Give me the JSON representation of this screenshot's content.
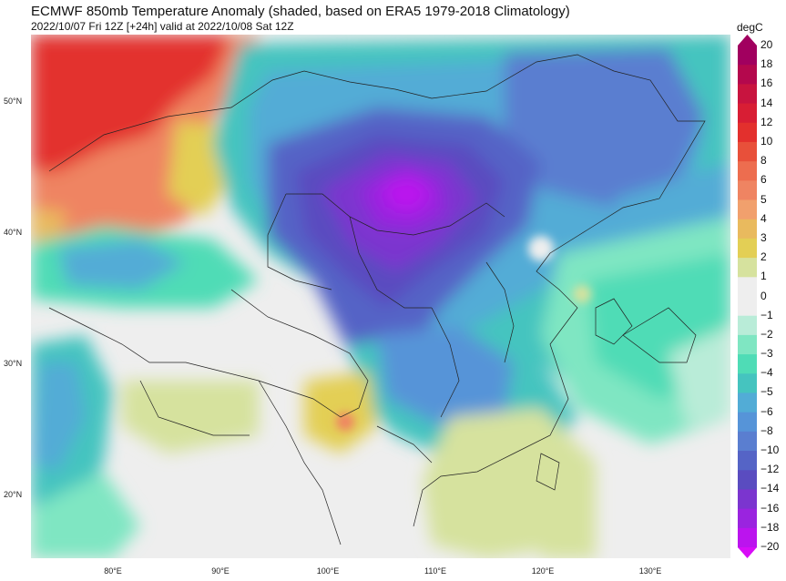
{
  "header": {
    "title": "ECMWF 850mb Temperature Anomaly (shaded, based on ERA5 1979-2018 Climatology)",
    "subtitle": "2022/10/07 Fri 12Z [+24h] valid at 2022/10/08 Sat 12Z"
  },
  "map": {
    "latitude_labels": [
      "50°N",
      "40°N",
      "30°N",
      "20°N"
    ],
    "longitude_labels": [
      "80°E",
      "90°E",
      "100°E",
      "110°E",
      "120°E",
      "130°E"
    ],
    "background_color": "#f0f0f0"
  },
  "colorbar": {
    "unit": "degC",
    "levels": [
      {
        "label": "20",
        "color": "#a1005f"
      },
      {
        "label": "18",
        "color": "#b4084d"
      },
      {
        "label": "16",
        "color": "#c8143f"
      },
      {
        "label": "14",
        "color": "#d81e34"
      },
      {
        "label": "12",
        "color": "#e3302d"
      },
      {
        "label": "10",
        "color": "#e8503a"
      },
      {
        "label": "8",
        "color": "#ed6d4f"
      },
      {
        "label": "6",
        "color": "#ef8462"
      },
      {
        "label": "5",
        "color": "#f1a06d"
      },
      {
        "label": "4",
        "color": "#e9ba5e"
      },
      {
        "label": "3",
        "color": "#e3cf55"
      },
      {
        "label": "2",
        "color": "#d6e29e"
      },
      {
        "label": "1",
        "color": "#eeeeee"
      },
      {
        "label": "0",
        "color": "#eeeeee"
      },
      {
        "label": "−1",
        "color": "#b9ecd8"
      },
      {
        "label": "−2",
        "color": "#7fe6c2"
      },
      {
        "label": "−3",
        "color": "#4fdcb6"
      },
      {
        "label": "−4",
        "color": "#45c4bf"
      },
      {
        "label": "−5",
        "color": "#52acd6"
      },
      {
        "label": "−6",
        "color": "#5694d8"
      },
      {
        "label": "−8",
        "color": "#5a7ed0"
      },
      {
        "label": "−10",
        "color": "#5564c6"
      },
      {
        "label": "−12",
        "color": "#5a4cc0"
      },
      {
        "label": "−14",
        "color": "#7b35cf"
      },
      {
        "label": "−16",
        "color": "#9a24df"
      },
      {
        "label": "−18",
        "color": "#bb14ee"
      },
      {
        "label": "−20",
        "color": "#d80cf7"
      }
    ]
  }
}
